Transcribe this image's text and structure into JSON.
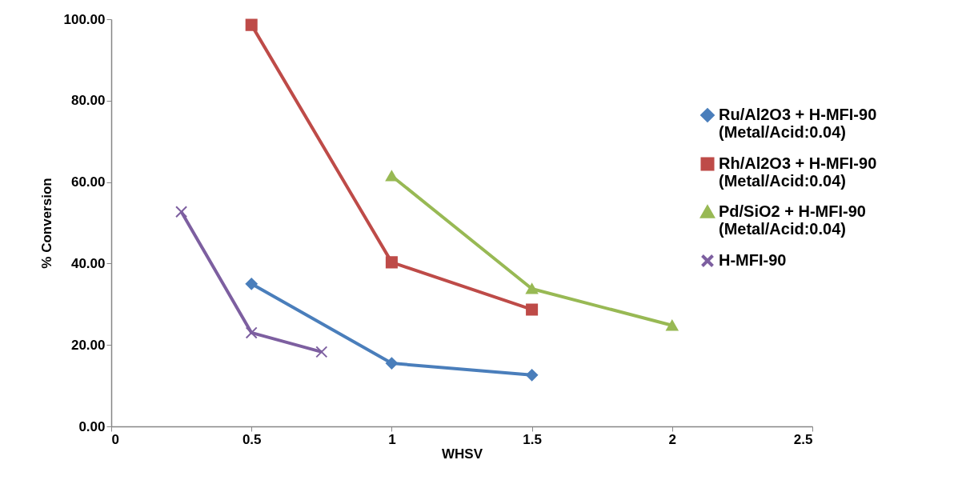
{
  "chart_data": {
    "type": "line",
    "xlabel": "WHSV",
    "ylabel": "% Conversion",
    "xlim": [
      0,
      2.5
    ],
    "xticks": [
      0,
      0.5,
      1,
      1.5,
      2,
      2.5
    ],
    "ylim": [
      0,
      100
    ],
    "yticks": [
      {
        "value": 0,
        "label": "0.00"
      },
      {
        "value": 20,
        "label": "20.00"
      },
      {
        "value": 40,
        "label": "40.00"
      },
      {
        "value": 60,
        "label": "60.00"
      },
      {
        "value": 80,
        "label": "80.00"
      },
      {
        "value": 100,
        "label": "100.00"
      }
    ],
    "grid": false,
    "legend": "right",
    "line_style": "solid",
    "series": [
      {
        "name": "Ru/Al2O3 + H-MFI-90\n(Metal/Acid:0.04)",
        "color": "#4a7ebb",
        "marker": "diamond",
        "x": [
          0.5,
          1,
          1.5
        ],
        "values": [
          35.0,
          15.5,
          12.6
        ]
      },
      {
        "name": "Rh/Al2O3 + H-MFI-90\n(Metal/Acid:0.04)",
        "color": "#be4b48",
        "marker": "square",
        "x": [
          0.5,
          1,
          1.5
        ],
        "values": [
          98.6,
          40.3,
          28.7
        ]
      },
      {
        "name": "Pd/SiO2 + H-MFI-90\n(Metal/Acid:0.04)",
        "color": "#98b954",
        "marker": "triangle",
        "x": [
          1,
          1.5,
          2
        ],
        "values": [
          61.5,
          33.8,
          24.8
        ]
      },
      {
        "name": "H-MFI-90",
        "color": "#7d5fa0",
        "marker": "cross",
        "x": [
          0.25,
          0.5,
          0.75
        ],
        "values": [
          52.7,
          23.0,
          18.3
        ]
      }
    ]
  }
}
